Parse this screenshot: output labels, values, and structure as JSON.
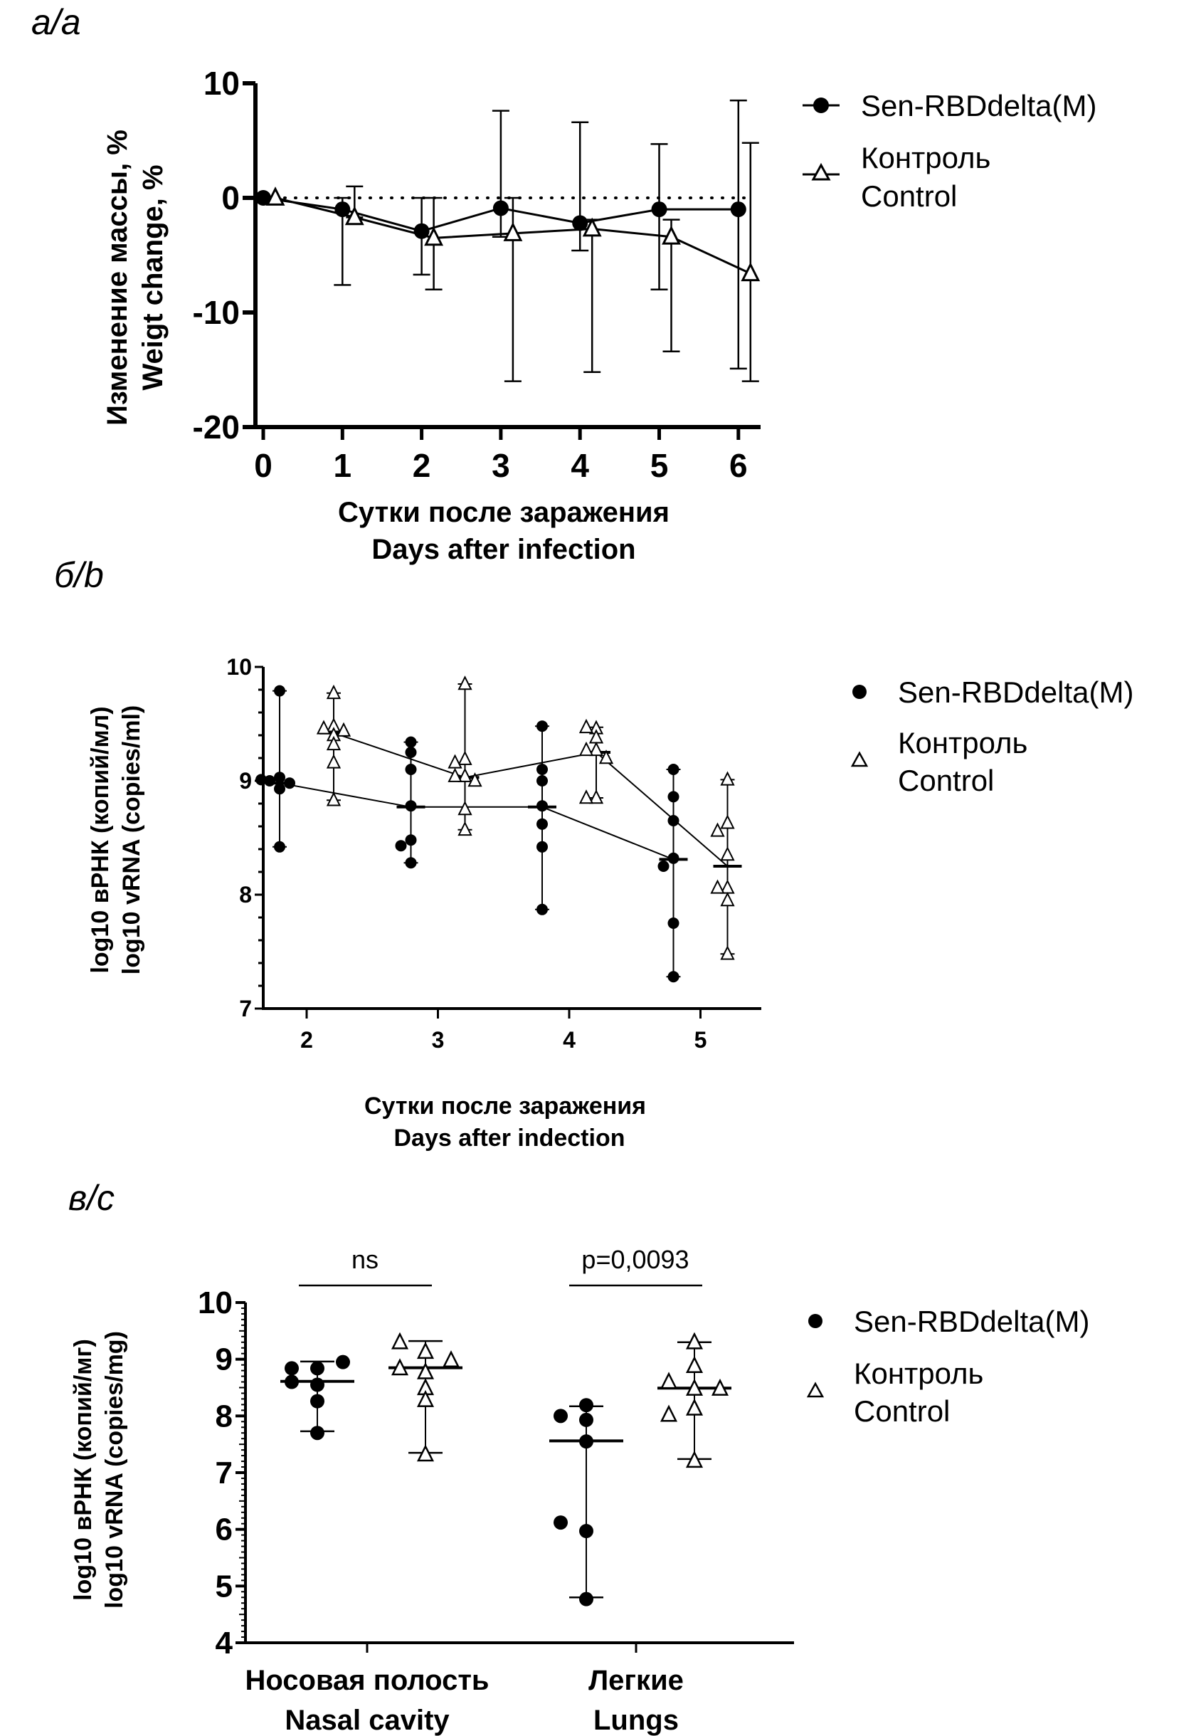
{
  "chart_data": [
    {
      "panel": "a",
      "panel_label": "а/а",
      "type": "line",
      "title": "",
      "xlabel": [
        "Сутки после заражения",
        "Days after infection"
      ],
      "ylabel": [
        "Изменение массы, %",
        "Weigt change, %"
      ],
      "x": [
        0,
        1,
        2,
        3,
        4,
        5,
        6
      ],
      "x_ticks": [
        "0",
        "1",
        "2",
        "3",
        "4",
        "5",
        "6"
      ],
      "y_ticks": [
        "10",
        "0",
        "-10",
        "-20"
      ],
      "ylim": [
        -20,
        10
      ],
      "reference_line": {
        "y": 0,
        "style": "dotted"
      },
      "legend_position": "top-right",
      "series": [
        {
          "name": "Sen-RBDdelta(M)",
          "marker": "filled-circle",
          "values": [
            0,
            -1.0,
            -2.9,
            -0.9,
            -2.2,
            -1.0,
            -1.0
          ],
          "error_upper": [
            0,
            0,
            0,
            7.6,
            6.6,
            4.7,
            8.5
          ],
          "error_lower": [
            0,
            -7.6,
            -6.7,
            -3.4,
            -4.6,
            -8.0,
            -14.9
          ]
        },
        {
          "name": "Контроль / Control",
          "name_lines": [
            "Контроль",
            "Control"
          ],
          "marker": "open-triangle",
          "values": [
            0,
            -1.7,
            -3.5,
            -3.1,
            -2.7,
            -3.4,
            -6.6
          ],
          "error_upper": [
            0,
            1.0,
            0,
            0,
            -1.9,
            -1.9,
            4.8
          ],
          "error_lower": [
            0,
            -1.7,
            -8.0,
            -16.0,
            -15.2,
            -13.4,
            -16.0
          ]
        }
      ]
    },
    {
      "panel": "b",
      "panel_label": "б/b",
      "type": "scatter",
      "title": "",
      "xlabel": [
        "Сутки после заражения",
        "Days after indection"
      ],
      "ylabel": [
        "log10 вРНК (копий/мл)",
        "log10 vRNA (copies/ml)"
      ],
      "x_ticks": [
        "2",
        "3",
        "4",
        "5"
      ],
      "categories": [
        2,
        3,
        4,
        5
      ],
      "y_ticks": [
        "10",
        "9",
        "8",
        "7"
      ],
      "ylim": [
        7,
        10
      ],
      "legend_position": "top-right",
      "series": [
        {
          "name": "Sen-RBDdelta(M)",
          "marker": "filled-circle",
          "points": [
            [
              9.79,
              9.03,
              9.0,
              8.98,
              8.93,
              9.01,
              8.42
            ],
            [
              9.34,
              9.25,
              9.1,
              8.78,
              8.48,
              8.43,
              8.28
            ],
            [
              9.48,
              9.1,
              9.0,
              8.78,
              8.62,
              8.42,
              7.87
            ],
            [
              9.1,
              8.86,
              8.65,
              8.32,
              8.25,
              7.75,
              7.28
            ]
          ],
          "median": [
            8.98,
            8.77,
            8.77,
            8.31
          ],
          "min": [
            8.42,
            8.28,
            7.87,
            7.28
          ],
          "max": [
            9.79,
            9.34,
            9.48,
            9.1
          ]
        },
        {
          "name": "Контроль / Control",
          "name_lines": [
            "Контроль",
            "Control"
          ],
          "marker": "open-triangle",
          "points": [
            [
              9.77,
              9.48,
              9.46,
              9.44,
              9.4,
              9.32,
              9.16,
              8.83
            ],
            [
              9.85,
              9.19,
              9.16,
              9.04,
              9.04,
              9.0,
              8.75,
              8.57
            ],
            [
              9.46,
              9.47,
              9.38,
              9.27,
              9.27,
              9.2,
              8.85,
              8.85
            ],
            [
              9.01,
              8.63,
              8.56,
              8.35,
              8.06,
              8.06,
              7.95,
              7.48
            ]
          ],
          "median": [
            9.42,
            9.03,
            9.25,
            8.25
          ],
          "min": [
            8.83,
            8.57,
            8.85,
            7.48
          ],
          "max": [
            9.77,
            9.85,
            9.47,
            9.01
          ]
        }
      ]
    },
    {
      "panel": "c",
      "panel_label": "в/c",
      "type": "scatter",
      "title": "",
      "categories": [
        [
          "Носовая полость",
          "Nasal cavity"
        ],
        [
          "Легкие",
          "Lungs"
        ]
      ],
      "xlabel": "",
      "ylabel": [
        "log10 вРНК (копий/мг)",
        "log10 vRNA (copies/mg)"
      ],
      "y_ticks": [
        "10",
        "9",
        "8",
        "7",
        "6",
        "5",
        "4"
      ],
      "ylim": [
        4,
        10
      ],
      "annotations": [
        "ns",
        "p=0,0093"
      ],
      "legend_position": "top-right",
      "series": [
        {
          "name": "Sen-RBDdelta(M)",
          "marker": "filled-circle",
          "points": [
            [
              8.84,
              8.84,
              8.95,
              8.55,
              8.6,
              8.26,
              7.7
            ],
            [
              8.19,
              7.93,
              8.0,
              7.55,
              5.97,
              6.12,
              4.77
            ]
          ],
          "median": [
            8.61,
            7.56
          ],
          "min": [
            7.73,
            4.8
          ],
          "max": [
            8.96,
            8.17
          ]
        },
        {
          "name": "Контроль / Control",
          "name_lines": [
            "Контроль",
            "Control"
          ],
          "marker": "open-triangle",
          "points": [
            [
              9.13,
              9.3,
              8.77,
              8.84,
              8.98,
              8.49,
              8.28,
              7.32
            ],
            [
              9.3,
              8.88,
              8.48,
              8.6,
              8.48,
              8.13,
              8.02,
              7.21
            ]
          ],
          "median": [
            8.85,
            8.49
          ],
          "min": [
            7.35,
            7.24
          ],
          "max": [
            9.32,
            9.3
          ]
        }
      ]
    }
  ]
}
